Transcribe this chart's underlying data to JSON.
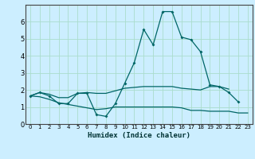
{
  "title": "",
  "xlabel": "Humidex (Indice chaleur)",
  "background_color": "#cceeff",
  "line_color": "#006666",
  "grid_color": "#aaddcc",
  "x": [
    0,
    1,
    2,
    3,
    4,
    5,
    6,
    7,
    8,
    9,
    10,
    11,
    12,
    13,
    14,
    15,
    16,
    17,
    18,
    19,
    20,
    21,
    22,
    23
  ],
  "line1": [
    1.65,
    1.85,
    1.65,
    1.2,
    1.2,
    1.8,
    1.8,
    0.55,
    0.45,
    1.2,
    2.4,
    3.6,
    5.55,
    4.65,
    6.6,
    6.6,
    5.1,
    4.95,
    4.25,
    2.3,
    2.2,
    1.85,
    1.3,
    null
  ],
  "line2": [
    1.65,
    1.85,
    1.75,
    1.55,
    1.55,
    1.8,
    1.85,
    1.8,
    1.8,
    1.95,
    2.1,
    2.15,
    2.2,
    2.2,
    2.2,
    2.2,
    2.1,
    2.05,
    2.0,
    2.2,
    2.2,
    2.05,
    null,
    null
  ],
  "line3": [
    1.65,
    1.6,
    1.45,
    1.25,
    1.15,
    1.05,
    0.95,
    0.85,
    0.9,
    1.0,
    1.0,
    1.0,
    1.0,
    1.0,
    1.0,
    1.0,
    0.95,
    0.8,
    0.8,
    0.75,
    0.75,
    0.75,
    0.65,
    0.65
  ],
  "ylim": [
    0,
    7
  ],
  "xlim": [
    -0.5,
    23.5
  ],
  "yticks": [
    0,
    1,
    2,
    3,
    4,
    5,
    6
  ],
  "xticks": [
    0,
    1,
    2,
    3,
    4,
    5,
    6,
    7,
    8,
    9,
    10,
    11,
    12,
    13,
    14,
    15,
    16,
    17,
    18,
    19,
    20,
    21,
    22,
    23
  ]
}
